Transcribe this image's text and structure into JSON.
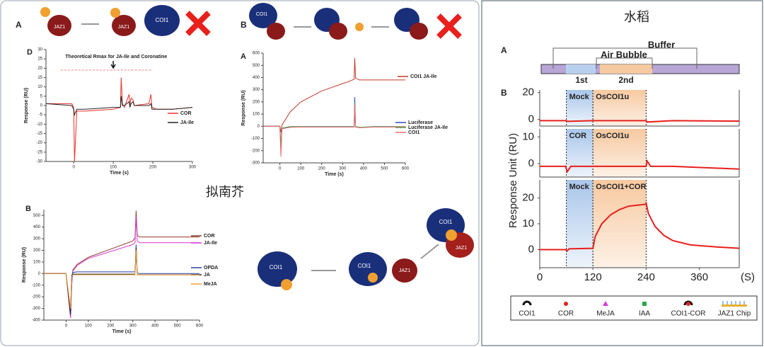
{
  "page": {
    "title_left": "拟南芥",
    "title_right": "水稻",
    "panel_a": "A",
    "panel_b": "B",
    "panel_d": "D",
    "jaz1": "JAZ1",
    "coi1": "COI1",
    "ligand": "JA-Ile",
    "buffer": "Buffer",
    "air_bubble": "Air Bubble",
    "first": "1st",
    "second": "2nd",
    "right_ylabel": "Response Unit (RU)",
    "legend": [
      "COI1",
      "COR",
      "MeJA",
      "IAA",
      "COI1-COR",
      "JAZ1 Chip"
    ]
  },
  "chart_data": [
    {
      "type": "line",
      "panel": "D",
      "xlabel": "Time (s)",
      "ylabel": "Response (RU)",
      "annotation": "Theoretical Rmax for JA-Ile and Coronatine",
      "rmax": 19,
      "xlim": [
        -70,
        300
      ],
      "ylim": [
        -30,
        30
      ],
      "xticks": [
        0,
        100,
        200,
        300
      ],
      "yticks": [
        -30,
        -25,
        -20,
        -15,
        -10,
        -5,
        0,
        5,
        10,
        15,
        20,
        25,
        30
      ],
      "x": [
        -70,
        -5,
        0,
        2,
        8,
        30,
        100,
        118,
        120,
        123,
        128,
        140,
        142,
        145,
        150,
        153,
        190,
        195,
        198,
        210,
        250,
        300
      ],
      "series": [
        {
          "name": "COR",
          "color": "#e8322c",
          "values": [
            1,
            1,
            -1,
            -30,
            -3,
            -3,
            -2,
            -1,
            15,
            1,
            -1,
            6,
            0,
            4,
            3,
            0,
            1,
            6,
            -1,
            -2,
            -2,
            -1
          ]
        },
        {
          "name": "JA-Ile",
          "color": "#222222",
          "values": [
            1,
            0,
            -2,
            -5,
            -2,
            -2,
            -1,
            -1,
            5,
            0,
            0,
            2,
            -1,
            1,
            2,
            0,
            0,
            1,
            -2,
            -2,
            -2,
            -1
          ]
        }
      ]
    },
    {
      "type": "line",
      "panel": "A",
      "xlabel": "Time (s)",
      "ylabel": "Response (RU)",
      "xlim": [
        -80,
        600
      ],
      "ylim": [
        -300,
        600
      ],
      "xticks": [
        0,
        100,
        200,
        300,
        400,
        500,
        600
      ],
      "yticks": [
        -300,
        -200,
        -100,
        0,
        100,
        200,
        300,
        400,
        500,
        600
      ],
      "x": [
        -80,
        0,
        5,
        10,
        50,
        100,
        200,
        300,
        340,
        355,
        358,
        362,
        380,
        450,
        600
      ],
      "series": [
        {
          "name": "COI1 JA-Ile",
          "color": "#c0392b",
          "values": [
            0,
            0,
            -50,
            10,
            120,
            200,
            290,
            350,
            375,
            385,
            560,
            395,
            380,
            380,
            380
          ]
        },
        {
          "name": "Luciferase",
          "color": "#2a4cc9",
          "values": [
            0,
            0,
            -200,
            -20,
            -5,
            -5,
            -5,
            -5,
            -5,
            -5,
            240,
            -5,
            -10,
            -5,
            -5
          ]
        },
        {
          "name": "Luciferase JA-Ile",
          "color": "#2a9a4a",
          "values": [
            0,
            0,
            -150,
            -15,
            -3,
            -3,
            -3,
            -3,
            -3,
            -3,
            200,
            -3,
            -8,
            -3,
            -3
          ]
        },
        {
          "name": "COI1",
          "color": "#f06a6a",
          "values": [
            0,
            0,
            -250,
            -20,
            -8,
            -6,
            -6,
            -6,
            -6,
            -6,
            180,
            -6,
            -12,
            -6,
            -6
          ]
        }
      ]
    },
    {
      "type": "line",
      "panel": "B",
      "xlabel": "Time (s)",
      "ylabel": "Response (RU)",
      "xlim": [
        -100,
        600
      ],
      "ylim": [
        -400,
        550
      ],
      "xticks": [
        0,
        100,
        200,
        300,
        400,
        500,
        600
      ],
      "yticks": [
        -400,
        -300,
        -200,
        -100,
        0,
        100,
        200,
        300,
        400,
        500
      ],
      "x": [
        -100,
        0,
        20,
        25,
        30,
        50,
        100,
        200,
        300,
        310,
        315,
        320,
        330,
        400,
        600
      ],
      "series": [
        {
          "name": "COR",
          "color": "#8b3a2a",
          "values": [
            0,
            0,
            -380,
            -100,
            30,
            80,
            140,
            210,
            280,
            310,
            540,
            330,
            315,
            315,
            315
          ]
        },
        {
          "name": "JA-Ile",
          "color": "#d63ad6",
          "values": [
            0,
            0,
            -380,
            -100,
            20,
            70,
            130,
            190,
            250,
            270,
            490,
            280,
            265,
            265,
            265
          ]
        },
        {
          "name": "OPDA",
          "color": "#2a3fa8",
          "values": [
            0,
            0,
            -350,
            -20,
            10,
            15,
            15,
            15,
            15,
            15,
            250,
            5,
            0,
            0,
            0
          ]
        },
        {
          "name": "JA",
          "color": "#222222",
          "values": [
            0,
            0,
            -350,
            -30,
            -5,
            -5,
            -5,
            -5,
            -5,
            -5,
            220,
            -10,
            -10,
            -10,
            -10
          ]
        },
        {
          "name": "MeJA",
          "color": "#f0a030",
          "values": [
            0,
            0,
            -300,
            -30,
            -10,
            -10,
            -10,
            -10,
            -10,
            -10,
            200,
            -12,
            -12,
            -12,
            -12
          ]
        }
      ]
    },
    {
      "type": "line",
      "color": "#e8201c",
      "xlim": [
        0,
        450
      ],
      "ylim": [
        -5,
        22
      ],
      "yticks": [
        0,
        20
      ],
      "regions": [
        {
          "from": 60,
          "to": 120,
          "label": "Mock"
        },
        {
          "from": 120,
          "to": 240,
          "label": "OsCOI1u"
        }
      ],
      "x": [
        0,
        60,
        62,
        120,
        180,
        240,
        242,
        300,
        450
      ],
      "values": [
        -1,
        -1,
        -1.5,
        -1,
        -1,
        -1,
        -2,
        -1,
        -1.3
      ]
    },
    {
      "type": "line",
      "color": "#e8201c",
      "xlim": [
        0,
        450
      ],
      "ylim": [
        -5,
        13
      ],
      "yticks": [
        0,
        10
      ],
      "regions": [
        {
          "from": 60,
          "to": 120,
          "label": "COR"
        },
        {
          "from": 120,
          "to": 240,
          "label": "OsCOI1u"
        }
      ],
      "x": [
        0,
        58,
        62,
        70,
        120,
        180,
        240,
        242,
        250,
        300,
        450
      ],
      "values": [
        -1,
        -1,
        -3,
        -1,
        -1,
        -1,
        -1,
        1,
        -1,
        -1,
        -2
      ]
    },
    {
      "type": "line",
      "color": "#e8201c",
      "xlim": [
        0,
        450
      ],
      "ylim": [
        -7,
        27
      ],
      "yticks": [
        0,
        10,
        20
      ],
      "xticks": [
        0,
        120,
        240,
        360
      ],
      "xlabel": "(S)",
      "regions": [
        {
          "from": 60,
          "to": 120,
          "label": "Mock"
        },
        {
          "from": 120,
          "to": 240,
          "label": "OsCOI1+COR"
        }
      ],
      "x": [
        0,
        58,
        62,
        66,
        120,
        125,
        140,
        160,
        180,
        200,
        220,
        238,
        240,
        245,
        260,
        280,
        300,
        340,
        400,
        450
      ],
      "values": [
        0,
        0,
        -0.5,
        0.3,
        0.5,
        5,
        10,
        13.5,
        15.5,
        16.8,
        17.2,
        17.5,
        18,
        14,
        9,
        5.5,
        3.5,
        1.8,
        1,
        0.5
      ]
    }
  ]
}
